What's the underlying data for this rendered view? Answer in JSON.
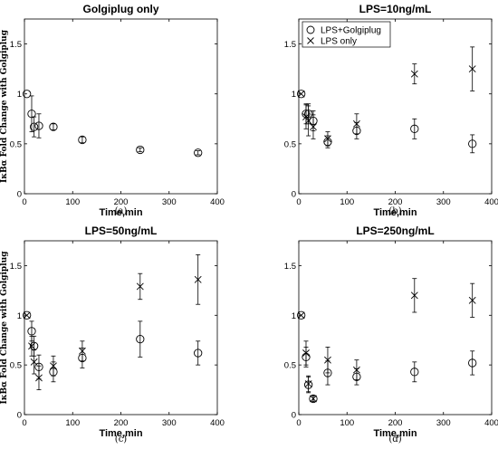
{
  "ylabel_left": "IκBα Fold Change with Golgiplug",
  "chart_data": [
    {
      "type": "scatter",
      "panel": "(a)",
      "title": "Golgiplug only",
      "xlabel": "Time,min",
      "ylabel": "IκBα Fold Change with Golgiplug",
      "xlim": [
        0,
        400
      ],
      "ylim": [
        0,
        1.75
      ],
      "xticks": [
        "0",
        "100",
        "200",
        "300",
        "400"
      ],
      "yticks": [
        "0",
        "0.5",
        "1",
        "1.5"
      ],
      "legend": null,
      "series": [
        {
          "name": "",
          "marker": "circle",
          "x": [
            5,
            15,
            20,
            30,
            60,
            120,
            240,
            360
          ],
          "y": [
            1.0,
            0.8,
            0.67,
            0.68,
            0.67,
            0.54,
            0.44,
            0.41
          ],
          "err": [
            0.0,
            0.18,
            0.1,
            0.12,
            0.03,
            0.03,
            0.02,
            0.02
          ]
        }
      ]
    },
    {
      "type": "scatter",
      "panel": "(b)",
      "title": "LPS=10ng/mL",
      "xlabel": "Time,min",
      "ylabel": "",
      "xlim": [
        0,
        400
      ],
      "ylim": [
        0,
        1.75
      ],
      "xticks": [
        "0",
        "100",
        "200",
        "300",
        "400"
      ],
      "yticks": [
        "0",
        "0.5",
        "1",
        "1.5"
      ],
      "legend": {
        "position": "top-left",
        "entries": [
          "LPS+Golgiplug",
          "LPS only"
        ]
      },
      "series": [
        {
          "name": "LPS+Golgiplug",
          "marker": "circle",
          "x": [
            5,
            15,
            20,
            30,
            60,
            120,
            240,
            360
          ],
          "y": [
            1.0,
            0.8,
            0.8,
            0.73,
            0.52,
            0.63,
            0.65,
            0.5
          ],
          "err": [
            0.0,
            0.1,
            0.1,
            0.1,
            0.06,
            0.08,
            0.1,
            0.09
          ]
        },
        {
          "name": "LPS only",
          "marker": "x",
          "x": [
            5,
            15,
            20,
            30,
            60,
            120,
            240,
            360
          ],
          "y": [
            1.0,
            0.77,
            0.73,
            0.67,
            0.55,
            0.7,
            1.2,
            1.25
          ],
          "err": [
            0.0,
            0.12,
            0.15,
            0.12,
            0.07,
            0.1,
            0.1,
            0.22
          ]
        }
      ]
    },
    {
      "type": "scatter",
      "panel": "(c)",
      "title": "LPS=50ng/mL",
      "xlabel": "Time,min",
      "ylabel": "IκBα Fold Change with Golgiplug",
      "xlim": [
        0,
        400
      ],
      "ylim": [
        0,
        1.75
      ],
      "xticks": [
        "0",
        "100",
        "200",
        "300",
        "400"
      ],
      "yticks": [
        "0",
        "0.5",
        "1",
        "1.5"
      ],
      "legend": null,
      "series": [
        {
          "name": "LPS+Golgiplug",
          "marker": "circle",
          "x": [
            5,
            15,
            20,
            30,
            60,
            120,
            240,
            360
          ],
          "y": [
            1.0,
            0.84,
            0.69,
            0.48,
            0.43,
            0.57,
            0.76,
            0.62
          ],
          "err": [
            0.0,
            0.1,
            0.1,
            0.12,
            0.1,
            0.1,
            0.18,
            0.12
          ]
        },
        {
          "name": "LPS only",
          "marker": "x",
          "x": [
            5,
            15,
            20,
            30,
            60,
            120,
            240,
            360
          ],
          "y": [
            1.0,
            0.69,
            0.53,
            0.37,
            0.49,
            0.64,
            1.29,
            1.36
          ],
          "err": [
            0.0,
            0.1,
            0.12,
            0.12,
            0.1,
            0.1,
            0.13,
            0.25
          ]
        }
      ]
    },
    {
      "type": "scatter",
      "panel": "(d)",
      "title": "LPS=250ng/mL",
      "xlabel": "Time,min",
      "ylabel": "",
      "xlim": [
        0,
        400
      ],
      "ylim": [
        0,
        1.75
      ],
      "xticks": [
        "0",
        "100",
        "200",
        "300",
        "400"
      ],
      "yticks": [
        "0",
        "0.5",
        "1",
        "1.5"
      ],
      "legend": null,
      "series": [
        {
          "name": "LPS+Golgiplug",
          "marker": "circle",
          "x": [
            5,
            15,
            20,
            30,
            60,
            120,
            240,
            360
          ],
          "y": [
            1.0,
            0.58,
            0.3,
            0.16,
            0.42,
            0.38,
            0.43,
            0.52
          ],
          "err": [
            0.0,
            0.1,
            0.08,
            0.03,
            0.12,
            0.08,
            0.1,
            0.12
          ]
        },
        {
          "name": "LPS only",
          "marker": "x",
          "x": [
            5,
            15,
            20,
            30,
            60,
            120,
            240,
            360
          ],
          "y": [
            1.0,
            0.62,
            0.31,
            0.16,
            0.55,
            0.45,
            1.2,
            1.15
          ],
          "err": [
            0.0,
            0.12,
            0.08,
            0.03,
            0.13,
            0.1,
            0.17,
            0.17
          ]
        }
      ]
    }
  ]
}
